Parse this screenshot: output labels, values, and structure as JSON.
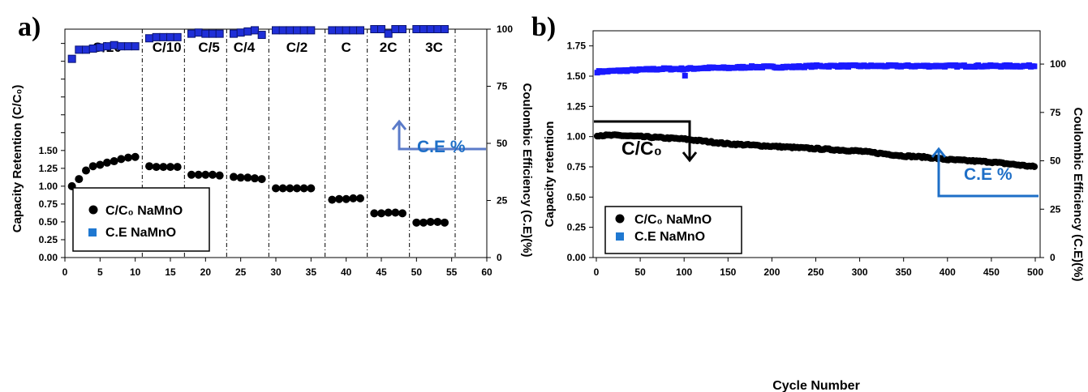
{
  "colors": {
    "ce_a": "#1f2fd8",
    "ce_b": "#1a1aff",
    "retention": "#000000",
    "annot": "#1e6fc7",
    "arrow_a": "#5b7bc9",
    "legend_square": "#1f78d1"
  },
  "chart_data": [
    {
      "panel_label": "a)",
      "type": "scatter",
      "xlabel": "",
      "ylabel": "Capacity Retention (C/C₀)",
      "y2label": "Coulombic Efficiency (C.E)(%)",
      "xlim": [
        0,
        60
      ],
      "ylim": [
        0,
        3.2
      ],
      "y2lim": [
        0,
        100
      ],
      "x_ticks": [
        "0",
        "5",
        "10",
        "15",
        "20",
        "25",
        "30",
        "35",
        "40",
        "45",
        "50",
        "55",
        "60"
      ],
      "y_ticks": [
        "0.00",
        "0.25",
        "0.50",
        "0.75",
        "1.00",
        "1.25",
        "1.50"
      ],
      "y2_ticks": [
        "0",
        "25",
        "50",
        "75",
        "100"
      ],
      "rate_labels": [
        "C/20",
        "C/10",
        "C/5",
        "C/4",
        "C/2",
        "C",
        "2C",
        "3C"
      ],
      "rate_label_x": [
        6,
        14.5,
        20.5,
        25.5,
        33,
        40,
        46,
        52.5
      ],
      "dividers": [
        11,
        17,
        23,
        29,
        37,
        43,
        49,
        55.5
      ],
      "annotation": "C.E %",
      "legend": [
        "C/C₀ NaMnO",
        "C.E  NaMnO"
      ],
      "series": [
        {
          "name": "C/C₀ NaMnO",
          "axis": "left",
          "x": [
            1,
            2,
            3,
            4,
            5,
            6,
            7,
            8,
            9,
            10,
            12,
            13,
            14,
            15,
            16,
            18,
            19,
            20,
            21,
            22,
            24,
            25,
            26,
            27,
            28,
            30,
            31,
            32,
            33,
            34,
            35,
            38,
            39,
            40,
            41,
            42,
            44,
            45,
            46,
            47,
            48,
            50,
            51,
            52,
            53,
            54
          ],
          "y": [
            1.0,
            1.1,
            1.22,
            1.28,
            1.3,
            1.33,
            1.35,
            1.38,
            1.4,
            1.41,
            1.28,
            1.27,
            1.27,
            1.27,
            1.27,
            1.16,
            1.16,
            1.16,
            1.16,
            1.15,
            1.13,
            1.12,
            1.12,
            1.11,
            1.1,
            0.97,
            0.97,
            0.97,
            0.97,
            0.97,
            0.97,
            0.81,
            0.82,
            0.82,
            0.83,
            0.83,
            0.62,
            0.62,
            0.63,
            0.63,
            0.62,
            0.49,
            0.49,
            0.5,
            0.5,
            0.49
          ]
        },
        {
          "name": "C.E  NaMnO",
          "axis": "right",
          "x": [
            1,
            2,
            3,
            4,
            5,
            6,
            7,
            8,
            9,
            10,
            12,
            13,
            14,
            15,
            16,
            18,
            19,
            20,
            21,
            22,
            24,
            25,
            26,
            27,
            28,
            30,
            31,
            32,
            33,
            34,
            35,
            38,
            39,
            40,
            41,
            42,
            44,
            45,
            46,
            47,
            48,
            50,
            51,
            52,
            53,
            54
          ],
          "y": [
            87,
            91,
            91,
            91.5,
            92,
            92.5,
            93,
            92.5,
            92.5,
            92.5,
            96,
            96.5,
            96.5,
            96.5,
            96.5,
            98,
            98.5,
            98,
            98,
            98,
            98,
            98.5,
            99,
            99.5,
            97.5,
            99.5,
            99.5,
            99.5,
            99.5,
            99.5,
            99.5,
            99.5,
            99.5,
            99.5,
            99.5,
            99.5,
            100,
            100,
            98,
            100,
            100,
            100,
            100,
            100,
            100,
            100
          ]
        }
      ]
    },
    {
      "panel_label": "b)",
      "type": "line",
      "xlabel": "Cycle Number",
      "ylabel": "Capacity retention",
      "y2label": "Coulombic Efficiency (C.E)(%)",
      "xlim": [
        0,
        500
      ],
      "ylim": [
        0,
        1.875
      ],
      "y2lim": [
        0,
        117.2
      ],
      "x_ticks": [
        "0",
        "50",
        "100",
        "150",
        "200",
        "250",
        "300",
        "350",
        "400",
        "450",
        "500"
      ],
      "y_ticks": [
        "0.00",
        "0.25",
        "0.50",
        "0.75",
        "1.00",
        "1.25",
        "1.50",
        "1.75"
      ],
      "y2_ticks": [
        "0",
        "25",
        "50",
        "75",
        "100"
      ],
      "annotation_left": "C/C₀",
      "annotation_right": "C.E %",
      "legend": [
        "C/C₀ NaMnO",
        "C.E  NaMnO"
      ],
      "series": [
        {
          "name": "C/C₀ NaMnO",
          "axis": "left",
          "x": [
            0,
            25,
            50,
            75,
            100,
            125,
            150,
            175,
            200,
            225,
            250,
            275,
            300,
            325,
            350,
            375,
            400,
            425,
            450,
            475,
            500
          ],
          "y": [
            1.01,
            1.01,
            1.0,
            0.99,
            0.98,
            0.96,
            0.94,
            0.93,
            0.92,
            0.91,
            0.9,
            0.89,
            0.88,
            0.86,
            0.84,
            0.83,
            0.81,
            0.8,
            0.79,
            0.77,
            0.75
          ]
        },
        {
          "name": "C.E  NaMnO",
          "axis": "right",
          "x": [
            0,
            25,
            50,
            75,
            100,
            125,
            150,
            175,
            200,
            225,
            250,
            275,
            300,
            325,
            350,
            375,
            400,
            425,
            450,
            475,
            500
          ],
          "y": [
            96,
            96.5,
            97,
            97.5,
            97.5,
            98,
            98,
            98.5,
            98.5,
            98.5,
            99,
            99,
            99,
            99,
            99,
            99,
            99,
            99,
            99,
            99,
            99
          ]
        }
      ]
    }
  ]
}
